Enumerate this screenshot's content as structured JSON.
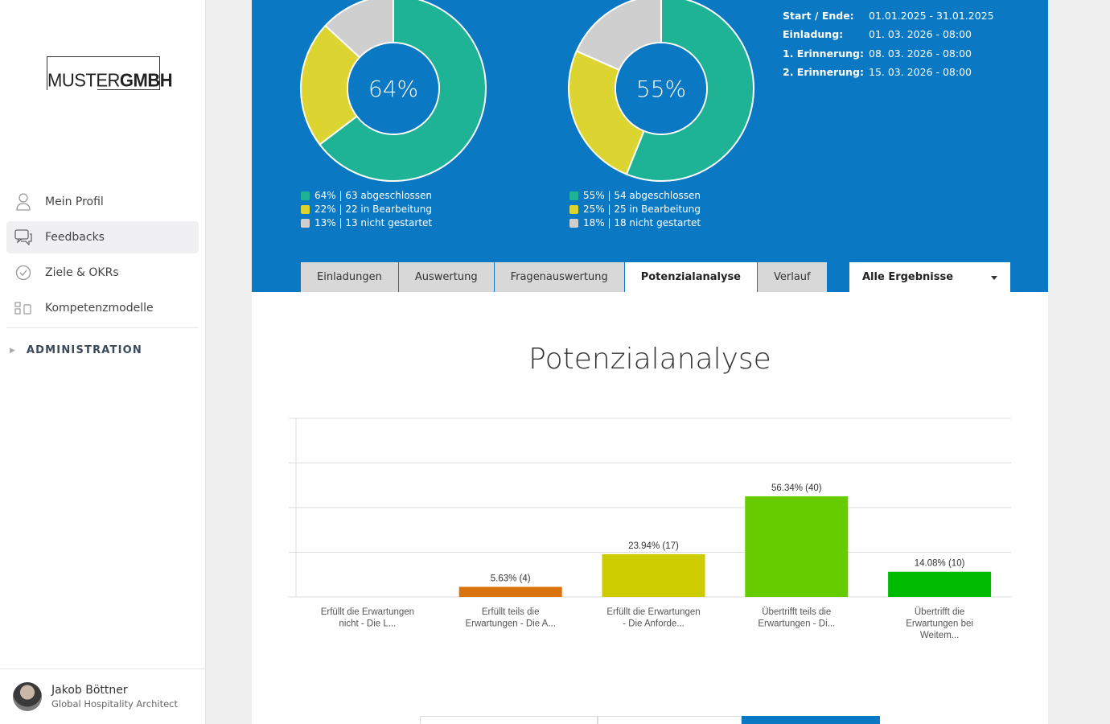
{
  "sidebar": {
    "logo": {
      "part1": "MUSTER",
      "part2": "GMBH"
    },
    "items": [
      {
        "label": "Mein Profil",
        "icon": "user-icon"
      },
      {
        "label": "Feedbacks",
        "icon": "chat-icon"
      },
      {
        "label": "Ziele & OKRs",
        "icon": "check-circle-icon"
      },
      {
        "label": "Kompetenzmodelle",
        "icon": "model-icon"
      }
    ],
    "admin_label": "ADMINISTRATION",
    "user": {
      "name": "Jakob Böttner",
      "role": "Global Hospitality Architect"
    }
  },
  "hero": {
    "donut1": {
      "center": "64%",
      "segments": [
        {
          "value": 64,
          "color": "#1db394"
        },
        {
          "value": 22,
          "color": "#dcd430"
        },
        {
          "value": 13,
          "color": "#cfcfcf"
        }
      ],
      "legend": [
        "64% | 63 abgeschlossen",
        "22% | 22 in Bearbeitung",
        "13% | 13 nicht gestartet"
      ]
    },
    "donut2": {
      "center": "55%",
      "segments": [
        {
          "value": 55,
          "color": "#1db394"
        },
        {
          "value": 25,
          "color": "#dcd430"
        },
        {
          "value": 18,
          "color": "#cfcfcf"
        }
      ],
      "legend": [
        "55% | 54 abgeschlossen",
        "25% | 25 in Bearbeitung",
        "18% | 18 nicht gestartet"
      ]
    },
    "info": [
      {
        "k": "Start / Ende:",
        "v": "01.01.2025 - 31.01.2025"
      },
      {
        "k": "Einladung:",
        "v": "01. 03. 2026 - 08:00"
      },
      {
        "k": "1. Erinnerung:",
        "v": "08. 03. 2026 - 08:00"
      },
      {
        "k": "2. Erinnerung:",
        "v": "15. 03. 2026 - 08:00"
      }
    ]
  },
  "tabs": [
    "Einladungen",
    "Auswertung",
    "Fragenauswertung",
    "Potenzialanalyse",
    "Verlauf"
  ],
  "active_tab": "Potenzialanalyse",
  "dropdown": {
    "selected": "Alle Ergebnisse"
  },
  "section_title": "Potenzialanalyse",
  "chart_data": {
    "type": "bar",
    "categories": [
      [
        "Erfüllt die Erwartungen",
        "nicht - Die L..."
      ],
      [
        "Erfüllt teils die",
        "Erwartungen - Die A..."
      ],
      [
        "Erfüllt die Erwartungen",
        "- Die Anforde..."
      ],
      [
        "Übertrifft teils die",
        "Erwartungen - Di..."
      ],
      [
        "Übertrifft die",
        "Erwartungen bei",
        "Weitem..."
      ]
    ],
    "values": [
      0,
      5.63,
      23.94,
      56.34,
      14.08
    ],
    "data_labels": [
      "",
      "5.63% (4)",
      "23.94% (17)",
      "56.34% (40)",
      "14.08% (10)"
    ],
    "colors": [
      "#cc0000",
      "#d9730d",
      "#cccc00",
      "#66cc00",
      "#00bb00"
    ],
    "ylim": [
      0,
      100
    ],
    "grid": true
  }
}
